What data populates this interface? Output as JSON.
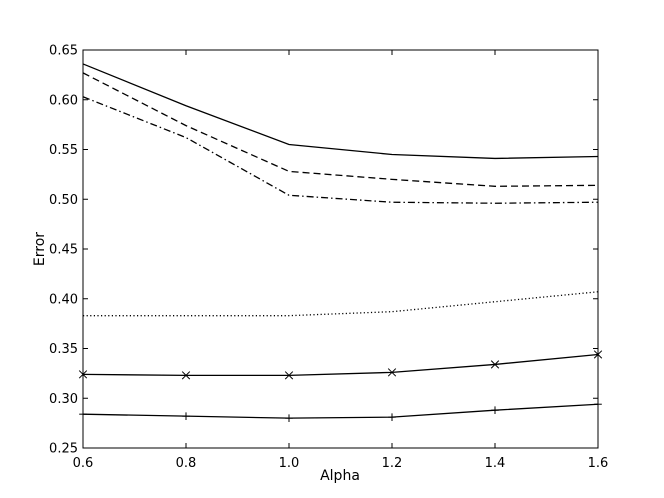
{
  "chart_data": {
    "type": "line",
    "title": "",
    "xlabel": "Alpha",
    "ylabel": "Error",
    "xlim": [
      0.6,
      1.6
    ],
    "ylim": [
      0.25,
      0.65
    ],
    "x_ticks": [
      "0.6",
      "0.8",
      "1.0",
      "1.2",
      "1.4",
      "1.6"
    ],
    "y_ticks": [
      "0.25",
      "0.30",
      "0.35",
      "0.40",
      "0.45",
      "0.50",
      "0.55",
      "0.60",
      "0.65"
    ],
    "grid": false,
    "legend": "none",
    "x": [
      0.6,
      0.8,
      1.0,
      1.2,
      1.4,
      1.6
    ],
    "series": [
      {
        "style": "solid",
        "marker": "none",
        "color": "#000000",
        "values": [
          0.636,
          0.594,
          0.555,
          0.545,
          0.541,
          0.543
        ]
      },
      {
        "style": "dashed",
        "marker": "none",
        "color": "#000000",
        "values": [
          0.627,
          0.574,
          0.528,
          0.52,
          0.513,
          0.514
        ]
      },
      {
        "style": "dashdot",
        "marker": "none",
        "color": "#000000",
        "values": [
          0.603,
          0.562,
          0.504,
          0.497,
          0.496,
          0.497
        ]
      },
      {
        "style": "dotted",
        "marker": "none",
        "color": "#000000",
        "values": [
          0.383,
          0.383,
          0.383,
          0.387,
          0.397,
          0.407
        ]
      },
      {
        "style": "solid",
        "marker": "x",
        "color": "#000000",
        "values": [
          0.324,
          0.323,
          0.323,
          0.326,
          0.334,
          0.344
        ]
      },
      {
        "style": "solid",
        "marker": "plus",
        "color": "#000000",
        "values": [
          0.284,
          0.282,
          0.28,
          0.281,
          0.288,
          0.294
        ]
      }
    ]
  }
}
